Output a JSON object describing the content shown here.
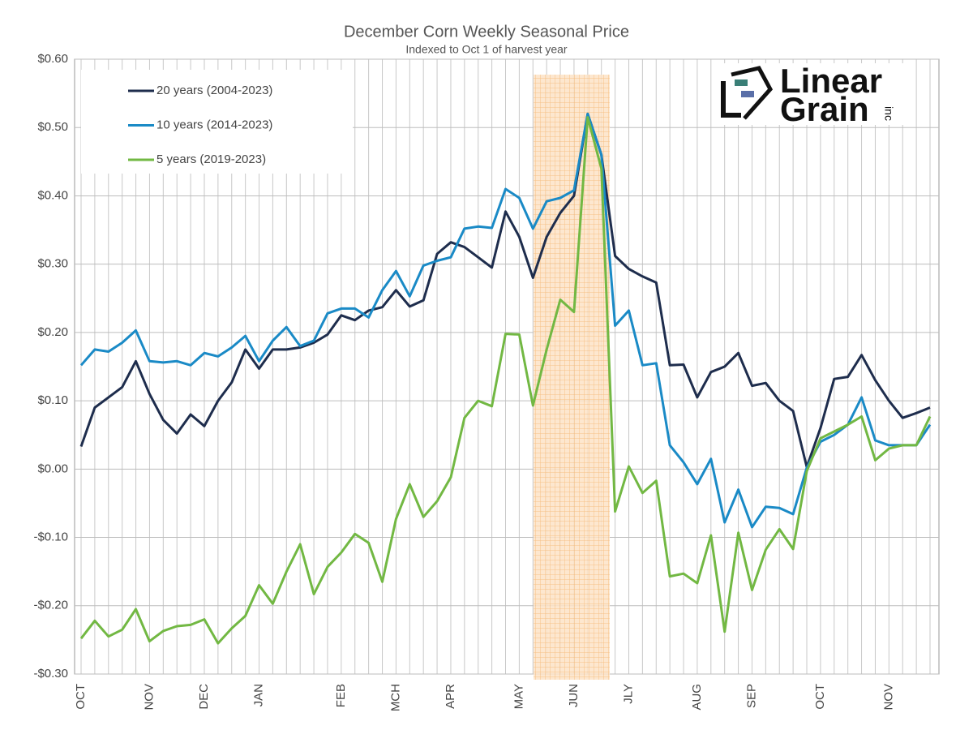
{
  "chart_data": {
    "type": "line",
    "title": "December Corn Weekly Seasonal Price",
    "subtitle": "Indexed to Oct 1 of harvest year",
    "logo": {
      "line1": "Linear",
      "line2": "Grain",
      "suffix": "inc"
    },
    "categories": [
      "OCT",
      null,
      null,
      null,
      null,
      "NOV",
      null,
      null,
      null,
      "DEC",
      null,
      null,
      null,
      "JAN",
      null,
      null,
      null,
      null,
      null,
      "FEB",
      null,
      null,
      null,
      "MCH",
      null,
      null,
      null,
      "APR",
      null,
      null,
      null,
      null,
      "MAY",
      null,
      null,
      null,
      "JUN",
      null,
      null,
      null,
      "JLY",
      null,
      null,
      null,
      null,
      "AUG",
      null,
      null,
      null,
      "SEP",
      null,
      null,
      null,
      null,
      "OCT",
      null,
      null,
      null,
      null,
      "NOV",
      null,
      null,
      null
    ],
    "ylim": [
      -0.3,
      0.6
    ],
    "yticks": [
      {
        "value": -0.3,
        "label": "-$0.30"
      },
      {
        "value": -0.2,
        "label": "-$0.20"
      },
      {
        "value": -0.1,
        "label": "-$0.10"
      },
      {
        "value": 0,
        "label": "$0.00"
      },
      {
        "value": 0.1,
        "label": "$0.10"
      },
      {
        "value": 0.2,
        "label": "$0.20"
      },
      {
        "value": 0.3,
        "label": "$0.30"
      },
      {
        "value": 0.4,
        "label": "$0.40"
      },
      {
        "value": 0.5,
        "label": "$0.50"
      },
      {
        "value": 0.6,
        "label": "$0.60"
      }
    ],
    "grid": true,
    "legend": "upper left",
    "series": [
      {
        "name": "20 years (2004-2023)",
        "color": "#1e2d4d",
        "values": [
          0.033,
          0.09,
          0.105,
          0.12,
          0.158,
          0.11,
          0.072,
          0.052,
          0.08,
          0.063,
          0.1,
          0.127,
          0.175,
          0.147,
          0.175,
          0.175,
          0.178,
          0.185,
          0.197,
          0.225,
          0.218,
          0.232,
          0.237,
          0.262,
          0.238,
          0.247,
          0.315,
          0.332,
          0.325,
          0.31,
          0.295,
          0.377,
          0.34,
          0.28,
          0.34,
          0.375,
          0.4,
          0.52,
          0.46,
          0.312,
          0.293,
          0.282,
          0.273,
          0.152,
          0.153,
          0.105,
          0.142,
          0.15,
          0.17,
          0.122,
          0.126,
          0.1,
          0.085,
          0.003,
          0.06,
          0.132,
          0.135,
          0.167,
          0.13,
          0.1,
          0.075,
          0.082,
          0.09
        ]
      },
      {
        "name": "10 years (2014-2023)",
        "color": "#1a8ac6",
        "values": [
          0.152,
          0.175,
          0.172,
          0.185,
          0.203,
          0.158,
          0.156,
          0.158,
          0.152,
          0.17,
          0.165,
          0.178,
          0.195,
          0.158,
          0.188,
          0.208,
          0.18,
          0.188,
          0.228,
          0.235,
          0.235,
          0.222,
          0.262,
          0.29,
          0.253,
          0.298,
          0.305,
          0.31,
          0.352,
          0.355,
          0.353,
          0.41,
          0.397,
          0.352,
          0.392,
          0.397,
          0.408,
          0.52,
          0.46,
          0.21,
          0.232,
          0.152,
          0.155,
          0.035,
          0.01,
          -0.022,
          0.015,
          -0.078,
          -0.03,
          -0.085,
          -0.055,
          -0.057,
          -0.066,
          0.002,
          0.04,
          0.05,
          0.065,
          0.105,
          0.042,
          0.035,
          0.035,
          0.035,
          0.065
        ]
      },
      {
        "name": "5 years (2019-2023)",
        "color": "#72b843",
        "values": [
          -0.248,
          -0.222,
          -0.245,
          -0.235,
          -0.205,
          -0.252,
          -0.237,
          -0.23,
          -0.228,
          -0.22,
          -0.255,
          -0.233,
          -0.215,
          -0.17,
          -0.197,
          -0.15,
          -0.11,
          -0.183,
          -0.143,
          -0.122,
          -0.095,
          -0.108,
          -0.165,
          -0.073,
          -0.022,
          -0.07,
          -0.047,
          -0.012,
          0.075,
          0.1,
          0.092,
          0.198,
          0.197,
          0.093,
          0.175,
          0.248,
          0.23,
          0.515,
          0.44,
          -0.062,
          0.004,
          -0.035,
          -0.017,
          -0.157,
          -0.153,
          -0.167,
          -0.097,
          -0.238,
          -0.093,
          -0.177,
          -0.118,
          -0.088,
          -0.117,
          -0.003,
          0.045,
          0.055,
          0.065,
          0.077,
          0.013,
          0.03,
          0.035,
          0.035,
          0.077
        ]
      }
    ]
  }
}
